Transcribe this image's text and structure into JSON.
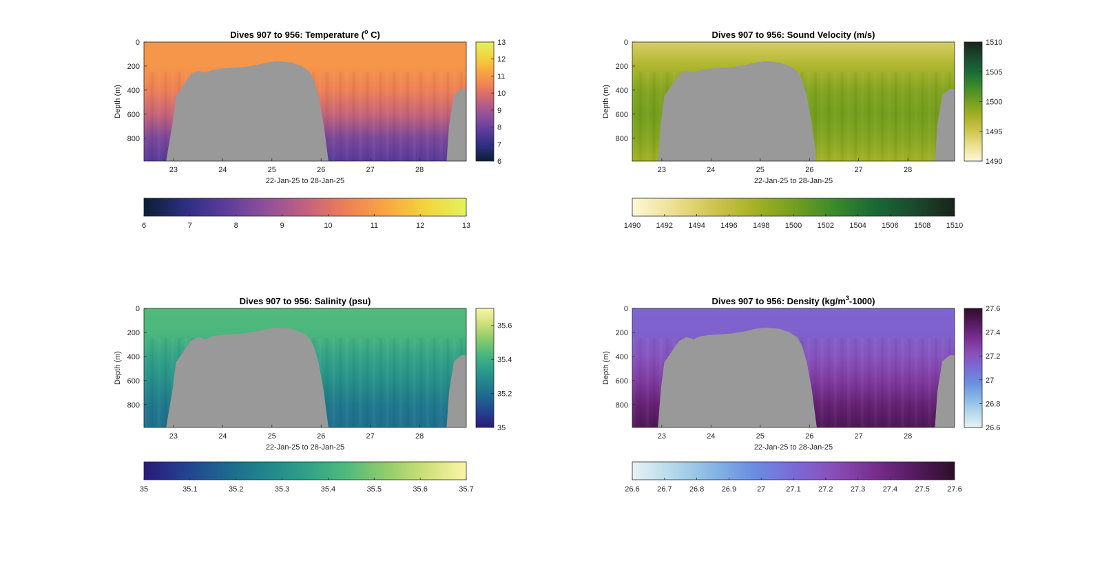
{
  "figure": {
    "background": "#ffffff",
    "mask_color": "#999999"
  },
  "chart_data": [
    {
      "type": "heatmap",
      "title": "Dives 907 to 956: Temperature (",
      "title_superscript": "o",
      "title_suffix": " C)",
      "xlabel": "22-Jan-25 to 28-Jan-25",
      "ylabel": "Depth (m)",
      "x_tick_labels": [
        "23",
        "24",
        "25",
        "26",
        "27",
        "28"
      ],
      "x_ticks": [
        23,
        24,
        25,
        26,
        27,
        28
      ],
      "xlim": [
        22.4,
        28.95
      ],
      "y_tick_labels": [
        "0",
        "200",
        "400",
        "600",
        "800"
      ],
      "y_ticks": [
        0,
        200,
        400,
        600,
        800
      ],
      "ylim": [
        0,
        990
      ],
      "y_reversed": true,
      "colorbar": {
        "side_ticks": [
          13,
          12,
          11,
          10,
          9,
          8,
          7,
          6
        ],
        "side_tick_labels": [
          "13",
          "12",
          "11",
          "10",
          "9",
          "8",
          "7",
          "6"
        ],
        "horizontal_ticks": [
          6,
          7,
          8,
          9,
          10,
          11,
          12,
          13
        ],
        "horizontal_tick_labels": [
          "6",
          "7",
          "8",
          "9",
          "10",
          "11",
          "12",
          "13"
        ],
        "range": [
          6,
          13
        ],
        "colors": [
          "#0b1e33",
          "#2c2e80",
          "#5a3c9a",
          "#8e4f9c",
          "#c2607f",
          "#ee7f57",
          "#f9a642",
          "#f2d53c",
          "#e4f25c"
        ]
      },
      "profile": {
        "surface": 10.9,
        "at_200m": 10.9,
        "at_400m": 10.4,
        "at_600m": 9.6,
        "at_800m": 8.3,
        "at_990m": 7.7
      },
      "gap_boundary_m": [
        [
          22.85,
          990
        ],
        [
          22.98,
          680
        ],
        [
          23.05,
          450
        ],
        [
          23.2,
          360
        ],
        [
          23.35,
          270
        ],
        [
          23.5,
          240
        ],
        [
          23.65,
          255
        ],
        [
          23.8,
          230
        ],
        [
          24.0,
          220
        ],
        [
          24.4,
          210
        ],
        [
          24.7,
          190
        ],
        [
          24.9,
          170
        ],
        [
          25.1,
          160
        ],
        [
          25.4,
          170
        ],
        [
          25.6,
          200
        ],
        [
          25.75,
          240
        ],
        [
          25.85,
          310
        ],
        [
          25.95,
          450
        ],
        [
          26.05,
          680
        ],
        [
          26.15,
          990
        ],
        [
          28.55,
          990
        ],
        [
          28.6,
          690
        ],
        [
          28.7,
          440
        ],
        [
          28.85,
          390
        ],
        [
          28.95,
          390
        ]
      ]
    },
    {
      "type": "heatmap",
      "title": "Dives 907 to 956: Sound Velocity (m/s)",
      "xlabel": "22-Jan-25 to 28-Jan-25",
      "ylabel": "Depth (m)",
      "x_tick_labels": [
        "23",
        "24",
        "25",
        "26",
        "27",
        "28"
      ],
      "x_ticks": [
        23,
        24,
        25,
        26,
        27,
        28
      ],
      "xlim": [
        22.4,
        28.95
      ],
      "y_tick_labels": [
        "0",
        "200",
        "400",
        "600",
        "800"
      ],
      "y_ticks": [
        0,
        200,
        400,
        600,
        800
      ],
      "ylim": [
        0,
        990
      ],
      "y_reversed": true,
      "colorbar": {
        "side_ticks": [
          1510,
          1505,
          1500,
          1495,
          1490
        ],
        "side_tick_labels": [
          "1510",
          "1505",
          "1500",
          "1495",
          "1490"
        ],
        "horizontal_ticks": [
          1490,
          1492,
          1494,
          1496,
          1498,
          1500,
          1502,
          1504,
          1506,
          1508,
          1510
        ],
        "horizontal_tick_labels": [
          "1490",
          "1492",
          "1494",
          "1496",
          "1498",
          "1500",
          "1502",
          "1504",
          "1506",
          "1508",
          "1510"
        ],
        "range": [
          1490,
          1510
        ],
        "colors": [
          "#fdf8d6",
          "#eee093",
          "#cfc550",
          "#a6b226",
          "#749f1e",
          "#3c8a2a",
          "#196a36",
          "#1a4a2e",
          "#19231a"
        ]
      },
      "profile": {
        "surface": 1494.2,
        "at_200m": 1497.0,
        "at_400m": 1499.3,
        "at_600m": 1500.0,
        "at_800m": 1499.2,
        "at_990m": 1497.6
      },
      "gap_boundary_m": [
        [
          22.92,
          990
        ],
        [
          22.98,
          680
        ],
        [
          23.05,
          450
        ],
        [
          23.2,
          360
        ],
        [
          23.35,
          270
        ],
        [
          23.5,
          240
        ],
        [
          23.65,
          255
        ],
        [
          23.8,
          230
        ],
        [
          24.0,
          220
        ],
        [
          24.4,
          210
        ],
        [
          24.7,
          190
        ],
        [
          24.9,
          170
        ],
        [
          25.1,
          160
        ],
        [
          25.4,
          170
        ],
        [
          25.6,
          200
        ],
        [
          25.75,
          240
        ],
        [
          25.85,
          310
        ],
        [
          25.95,
          450
        ],
        [
          26.05,
          680
        ],
        [
          26.15,
          990
        ],
        [
          28.55,
          990
        ],
        [
          28.6,
          690
        ],
        [
          28.7,
          440
        ],
        [
          28.85,
          390
        ],
        [
          28.95,
          390
        ]
      ]
    },
    {
      "type": "heatmap",
      "title": "Dives 907 to 956: Salinity (psu)",
      "xlabel": "22-Jan-25 to 28-Jan-25",
      "ylabel": "Depth (m)",
      "x_tick_labels": [
        "23",
        "24",
        "25",
        "26",
        "27",
        "28"
      ],
      "x_ticks": [
        23,
        24,
        25,
        26,
        27,
        28
      ],
      "xlim": [
        22.4,
        28.95
      ],
      "y_tick_labels": [
        "0",
        "200",
        "400",
        "600",
        "800"
      ],
      "y_ticks": [
        0,
        200,
        400,
        600,
        800
      ],
      "ylim": [
        0,
        990
      ],
      "y_reversed": true,
      "colorbar": {
        "side_ticks": [
          35.6,
          35.4,
          35.2,
          35
        ],
        "side_tick_labels": [
          "35.6",
          "35.4",
          "35.2",
          "35"
        ],
        "horizontal_ticks": [
          35,
          35.1,
          35.2,
          35.3,
          35.4,
          35.5,
          35.6,
          35.7
        ],
        "horizontal_tick_labels": [
          "35",
          "35.1",
          "35.2",
          "35.3",
          "35.4",
          "35.5",
          "35.6",
          "35.7"
        ],
        "range": [
          35,
          35.7
        ],
        "colors": [
          "#2a1a78",
          "#23418f",
          "#1e6690",
          "#21848c",
          "#2fa088",
          "#4fb97c",
          "#8fcc6c",
          "#cfe07a",
          "#fbf5a8"
        ]
      },
      "profile": {
        "surface": 35.44,
        "at_200m": 35.43,
        "at_400m": 35.36,
        "at_600m": 35.3,
        "at_800m": 35.23,
        "at_990m": 35.2
      },
      "gap_boundary_m": [
        [
          22.85,
          990
        ],
        [
          22.98,
          680
        ],
        [
          23.05,
          450
        ],
        [
          23.2,
          360
        ],
        [
          23.35,
          270
        ],
        [
          23.5,
          240
        ],
        [
          23.65,
          255
        ],
        [
          23.8,
          230
        ],
        [
          24.0,
          220
        ],
        [
          24.4,
          210
        ],
        [
          24.7,
          190
        ],
        [
          24.9,
          170
        ],
        [
          25.1,
          160
        ],
        [
          25.4,
          170
        ],
        [
          25.6,
          200
        ],
        [
          25.75,
          240
        ],
        [
          25.85,
          310
        ],
        [
          25.95,
          450
        ],
        [
          26.05,
          680
        ],
        [
          26.15,
          990
        ],
        [
          28.55,
          990
        ],
        [
          28.6,
          690
        ],
        [
          28.7,
          440
        ],
        [
          28.85,
          390
        ],
        [
          28.95,
          390
        ]
      ]
    },
    {
      "type": "heatmap",
      "title": "Dives 907 to 956: Density (kg/m",
      "title_superscript": "3",
      "title_suffix": "-1000)",
      "xlabel": "22-Jan-25 to 28-Jan-25",
      "ylabel": "Depth (m)",
      "x_tick_labels": [
        "23",
        "24",
        "25",
        "26",
        "27",
        "28"
      ],
      "x_ticks": [
        23,
        24,
        25,
        26,
        27,
        28
      ],
      "xlim": [
        22.4,
        28.95
      ],
      "y_tick_labels": [
        "0",
        "200",
        "400",
        "600",
        "800"
      ],
      "y_ticks": [
        0,
        200,
        400,
        600,
        800
      ],
      "ylim": [
        0,
        990
      ],
      "y_reversed": true,
      "colorbar": {
        "side_ticks": [
          27.6,
          27.4,
          27.2,
          27,
          26.8,
          26.6
        ],
        "side_tick_labels": [
          "27.6",
          "27.4",
          "27.2",
          "27",
          "26.8",
          "26.6"
        ],
        "horizontal_ticks": [
          26.6,
          26.7,
          26.8,
          26.9,
          27,
          27.1,
          27.2,
          27.3,
          27.4,
          27.5,
          27.6
        ],
        "horizontal_tick_labels": [
          "26.6",
          "26.7",
          "26.8",
          "26.9",
          "27",
          "27.1",
          "27.2",
          "27.3",
          "27.4",
          "27.5",
          "27.6"
        ],
        "range": [
          26.6,
          27.6
        ],
        "colors": [
          "#e6f2f5",
          "#b4d9ea",
          "#86b6e6",
          "#6a8ee0",
          "#7a6bd6",
          "#8a4eb8",
          "#782e90",
          "#561a60",
          "#2e0d2b"
        ]
      },
      "profile": {
        "surface": 27.13,
        "at_200m": 27.14,
        "at_400m": 27.2,
        "at_600m": 27.3,
        "at_800m": 27.42,
        "at_990m": 27.5
      },
      "gap_boundary_m": [
        [
          22.92,
          990
        ],
        [
          22.98,
          680
        ],
        [
          23.05,
          450
        ],
        [
          23.2,
          360
        ],
        [
          23.35,
          270
        ],
        [
          23.5,
          240
        ],
        [
          23.65,
          255
        ],
        [
          23.8,
          230
        ],
        [
          24.0,
          220
        ],
        [
          24.4,
          210
        ],
        [
          24.7,
          190
        ],
        [
          24.9,
          170
        ],
        [
          25.1,
          160
        ],
        [
          25.4,
          170
        ],
        [
          25.6,
          200
        ],
        [
          25.75,
          240
        ],
        [
          25.85,
          310
        ],
        [
          25.95,
          450
        ],
        [
          26.05,
          680
        ],
        [
          26.15,
          990
        ],
        [
          28.55,
          990
        ],
        [
          28.6,
          690
        ],
        [
          28.7,
          440
        ],
        [
          28.85,
          390
        ],
        [
          28.95,
          390
        ]
      ]
    }
  ]
}
